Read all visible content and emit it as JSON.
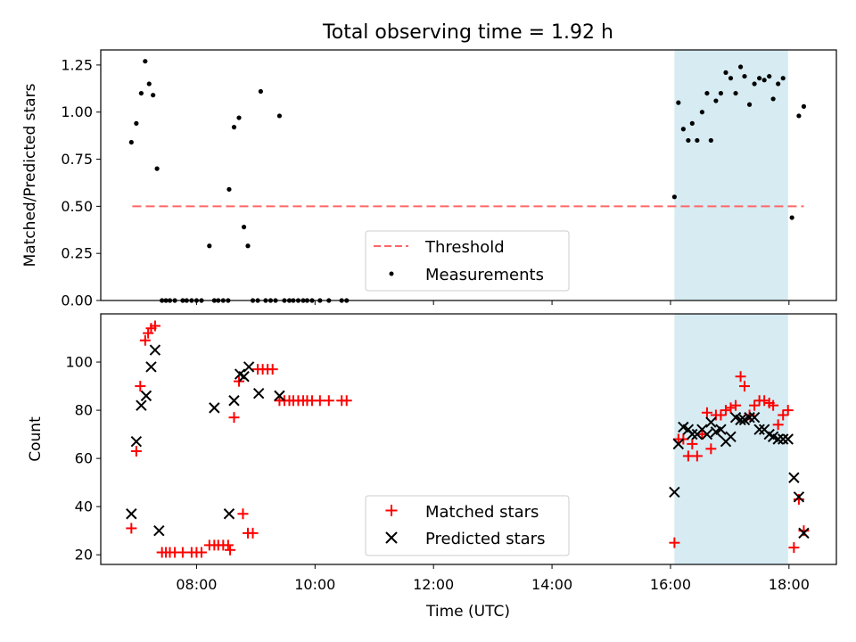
{
  "title": "Total observing time = 1.92 h",
  "colors": {
    "highlight": "#add8e6",
    "threshold": "#ff6666",
    "measurements": "#000000",
    "matched": "#ff0000",
    "predicted": "#000000"
  },
  "chart_data": [
    {
      "type": "scatter",
      "ylabel": "Matched/Predicted stars",
      "ylim": [
        0,
        1.33
      ],
      "xlim": [
        "06:23",
        "18:48"
      ],
      "yticks": [
        "0.00",
        "0.25",
        "0.50",
        "0.75",
        "1.00",
        "1.25"
      ],
      "highlight_span": [
        "16:04",
        "17:59"
      ],
      "legend": {
        "placement": "lower-center",
        "entries": [
          "Threshold",
          "Measurements"
        ]
      },
      "threshold": {
        "name": "Threshold",
        "y": 0.5,
        "x_start": "06:55",
        "x_end": "18:15",
        "style": "dashed"
      },
      "series": [
        {
          "name": "Measurements",
          "points": [
            [
              "06:54",
              0.84
            ],
            [
              "06:59",
              0.94
            ],
            [
              "07:04",
              1.1
            ],
            [
              "07:08",
              1.27
            ],
            [
              "07:12",
              1.15
            ],
            [
              "07:16",
              1.09
            ],
            [
              "07:20",
              0.7
            ],
            [
              "07:25",
              0.0
            ],
            [
              "07:29",
              0.0
            ],
            [
              "07:33",
              0.0
            ],
            [
              "07:38",
              0.0
            ],
            [
              "07:46",
              0.0
            ],
            [
              "07:50",
              0.0
            ],
            [
              "07:55",
              0.0
            ],
            [
              "08:00",
              0.0
            ],
            [
              "08:05",
              0.0
            ],
            [
              "08:13",
              0.29
            ],
            [
              "08:18",
              0.0
            ],
            [
              "08:22",
              0.0
            ],
            [
              "08:27",
              0.0
            ],
            [
              "08:32",
              0.0
            ],
            [
              "08:33",
              0.59
            ],
            [
              "08:38",
              0.92
            ],
            [
              "08:43",
              0.97
            ],
            [
              "08:48",
              0.39
            ],
            [
              "08:52",
              0.29
            ],
            [
              "08:57",
              0.0
            ],
            [
              "09:05",
              1.11
            ],
            [
              "09:02",
              0.0
            ],
            [
              "09:10",
              0.0
            ],
            [
              "09:15",
              0.0
            ],
            [
              "09:20",
              0.0
            ],
            [
              "09:24",
              0.98
            ],
            [
              "09:29",
              0.0
            ],
            [
              "09:34",
              0.0
            ],
            [
              "09:38",
              0.0
            ],
            [
              "09:43",
              0.0
            ],
            [
              "09:48",
              0.0
            ],
            [
              "09:52",
              0.0
            ],
            [
              "09:57",
              0.0
            ],
            [
              "10:05",
              0.0
            ],
            [
              "10:14",
              0.0
            ],
            [
              "10:27",
              0.0
            ],
            [
              "10:32",
              0.0
            ],
            [
              "16:04",
              0.55
            ],
            [
              "16:08",
              1.05
            ],
            [
              "16:13",
              0.91
            ],
            [
              "16:18",
              0.85
            ],
            [
              "16:22",
              0.94
            ],
            [
              "16:27",
              0.85
            ],
            [
              "16:32",
              1.0
            ],
            [
              "16:37",
              1.1
            ],
            [
              "16:41",
              0.85
            ],
            [
              "16:46",
              1.06
            ],
            [
              "16:51",
              1.1
            ],
            [
              "16:56",
              1.21
            ],
            [
              "17:01",
              1.18
            ],
            [
              "17:06",
              1.1
            ],
            [
              "17:11",
              1.24
            ],
            [
              "17:15",
              1.19
            ],
            [
              "17:20",
              1.04
            ],
            [
              "17:25",
              1.15
            ],
            [
              "17:30",
              1.18
            ],
            [
              "17:35",
              1.17
            ],
            [
              "17:40",
              1.19
            ],
            [
              "17:44",
              1.07
            ],
            [
              "17:49",
              1.15
            ],
            [
              "17:54",
              1.18
            ],
            [
              "18:03",
              0.44
            ],
            [
              "18:10",
              0.98
            ],
            [
              "18:15",
              1.03
            ]
          ]
        }
      ]
    },
    {
      "type": "scatter",
      "xlabel": "Time (UTC)",
      "ylabel": "Count",
      "ylim": [
        16,
        120
      ],
      "xlim": [
        "06:23",
        "18:48"
      ],
      "yticks": [
        "20",
        "40",
        "60",
        "80",
        "100"
      ],
      "xticks": [
        "08:00",
        "10:00",
        "12:00",
        "14:00",
        "16:00",
        "18:00"
      ],
      "highlight_span": [
        "16:04",
        "17:59"
      ],
      "legend": {
        "placement": "lower-center",
        "entries": [
          "Matched stars",
          "Predicted stars"
        ]
      },
      "series": [
        {
          "name": "Matched stars",
          "marker": "plus",
          "points": [
            [
              "06:54",
              31
            ],
            [
              "06:59",
              63
            ],
            [
              "07:03",
              90
            ],
            [
              "07:08",
              109
            ],
            [
              "07:11",
              112
            ],
            [
              "07:14",
              114
            ],
            [
              "07:18",
              115
            ],
            [
              "07:25",
              21
            ],
            [
              "07:29",
              21
            ],
            [
              "07:33",
              21
            ],
            [
              "07:38",
              21
            ],
            [
              "07:46",
              21
            ],
            [
              "07:55",
              21
            ],
            [
              "08:00",
              21
            ],
            [
              "08:05",
              21
            ],
            [
              "08:13",
              24
            ],
            [
              "08:18",
              24
            ],
            [
              "08:22",
              24
            ],
            [
              "08:27",
              24
            ],
            [
              "08:32",
              24
            ],
            [
              "08:34",
              22
            ],
            [
              "08:38",
              77
            ],
            [
              "08:43",
              92
            ],
            [
              "08:47",
              37
            ],
            [
              "08:52",
              29
            ],
            [
              "08:57",
              29
            ],
            [
              "09:02",
              97
            ],
            [
              "09:07",
              97
            ],
            [
              "09:12",
              97
            ],
            [
              "09:17",
              97
            ],
            [
              "09:24",
              84
            ],
            [
              "09:29",
              84
            ],
            [
              "09:34",
              84
            ],
            [
              "09:38",
              84
            ],
            [
              "09:43",
              84
            ],
            [
              "09:48",
              84
            ],
            [
              "09:52",
              84
            ],
            [
              "09:57",
              84
            ],
            [
              "10:05",
              84
            ],
            [
              "10:14",
              84
            ],
            [
              "10:27",
              84
            ],
            [
              "10:32",
              84
            ],
            [
              "16:04",
              25
            ],
            [
              "16:08",
              68
            ],
            [
              "16:13",
              68
            ],
            [
              "16:18",
              61
            ],
            [
              "16:22",
              66
            ],
            [
              "16:27",
              61
            ],
            [
              "16:32",
              70
            ],
            [
              "16:37",
              79
            ],
            [
              "16:41",
              64
            ],
            [
              "16:46",
              78
            ],
            [
              "16:51",
              78
            ],
            [
              "16:56",
              80
            ],
            [
              "17:01",
              81
            ],
            [
              "17:06",
              82
            ],
            [
              "17:11",
              94
            ],
            [
              "17:15",
              90
            ],
            [
              "17:20",
              78
            ],
            [
              "17:25",
              82
            ],
            [
              "17:30",
              84
            ],
            [
              "17:35",
              84
            ],
            [
              "17:40",
              83
            ],
            [
              "17:44",
              82
            ],
            [
              "17:49",
              74
            ],
            [
              "17:54",
              78
            ],
            [
              "17:59",
              80
            ],
            [
              "18:05",
              23
            ],
            [
              "18:10",
              43
            ],
            [
              "18:15",
              30
            ]
          ]
        },
        {
          "name": "Predicted stars",
          "marker": "x",
          "points": [
            [
              "06:54",
              37
            ],
            [
              "06:59",
              67
            ],
            [
              "07:04",
              82
            ],
            [
              "07:09",
              86
            ],
            [
              "07:14",
              98
            ],
            [
              "07:18",
              105
            ],
            [
              "07:22",
              30
            ],
            [
              "08:18",
              81
            ],
            [
              "08:33",
              37
            ],
            [
              "08:38",
              84
            ],
            [
              "08:44",
              95
            ],
            [
              "08:48",
              94
            ],
            [
              "08:53",
              98
            ],
            [
              "09:03",
              87
            ],
            [
              "09:24",
              86
            ],
            [
              "16:04",
              46
            ],
            [
              "16:08",
              66
            ],
            [
              "16:13",
              73
            ],
            [
              "16:18",
              72
            ],
            [
              "16:22",
              70
            ],
            [
              "16:27",
              70
            ],
            [
              "16:32",
              72
            ],
            [
              "16:37",
              70
            ],
            [
              "16:41",
              75
            ],
            [
              "16:46",
              71
            ],
            [
              "16:51",
              72
            ],
            [
              "16:56",
              67
            ],
            [
              "17:01",
              69
            ],
            [
              "17:06",
              77
            ],
            [
              "17:11",
              76
            ],
            [
              "17:15",
              76
            ],
            [
              "17:20",
              77
            ],
            [
              "17:25",
              77
            ],
            [
              "17:30",
              72
            ],
            [
              "17:35",
              72
            ],
            [
              "17:40",
              70
            ],
            [
              "17:44",
              69
            ],
            [
              "17:49",
              68
            ],
            [
              "17:54",
              68
            ],
            [
              "17:59",
              68
            ],
            [
              "18:05",
              52
            ],
            [
              "18:10",
              44
            ],
            [
              "18:15",
              29
            ]
          ]
        }
      ]
    }
  ]
}
